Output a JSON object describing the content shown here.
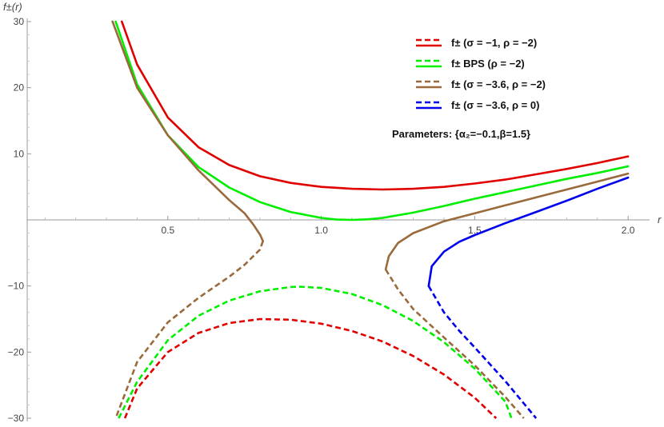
{
  "chart_data": {
    "type": "line",
    "xlabel": "r",
    "ylabel": "f±(r)",
    "xlim": [
      0.0,
      2.07
    ],
    "ylim": [
      -30,
      30
    ],
    "x_ticks": [
      0.5,
      1.0,
      1.5,
      2.0
    ],
    "x_tick_labels": [
      "0.5",
      "1.0",
      "1.5",
      "2.0"
    ],
    "y_ticks": [
      -30,
      -20,
      -10,
      10,
      20,
      30
    ],
    "y_tick_labels": [
      "−30",
      "−20",
      "−10",
      "10",
      "20",
      "30"
    ],
    "grid": false,
    "legend_position": "top-right",
    "annotation": "Parameters: {α₂=−0.1,β=1.5}",
    "series": [
      {
        "name": "f± (σ = −1, ρ = −2)",
        "color": "#e00000",
        "solid": {
          "x": [
            0.35,
            0.4,
            0.5,
            0.6,
            0.7,
            0.8,
            0.9,
            1.0,
            1.1,
            1.2,
            1.3,
            1.4,
            1.5,
            1.6,
            1.7,
            1.8,
            1.9,
            2.0
          ],
          "y": [
            30,
            23.5,
            15.5,
            11.0,
            8.3,
            6.6,
            5.6,
            5.0,
            4.7,
            4.6,
            4.7,
            5.0,
            5.5,
            6.1,
            6.9,
            7.7,
            8.6,
            9.6
          ]
        },
        "dashed": {
          "x": [
            0.36,
            0.4,
            0.5,
            0.6,
            0.7,
            0.8,
            0.9,
            1.0,
            1.1,
            1.2,
            1.3,
            1.4,
            1.5,
            1.57
          ],
          "y": [
            -30,
            -25.5,
            -20.0,
            -17.1,
            -15.6,
            -15.0,
            -15.1,
            -15.7,
            -16.8,
            -18.4,
            -20.6,
            -23.4,
            -26.9,
            -30
          ]
        }
      },
      {
        "name": "f± BPS (ρ = −2)",
        "color": "#00ee00",
        "solid": {
          "x": [
            0.33,
            0.4,
            0.5,
            0.6,
            0.7,
            0.8,
            0.9,
            1.0,
            1.05,
            1.1,
            1.15,
            1.2,
            1.3,
            1.4,
            1.5,
            1.6,
            1.7,
            1.8,
            1.9,
            2.0
          ],
          "y": [
            30,
            20.5,
            12.8,
            8.0,
            4.9,
            2.7,
            1.2,
            0.3,
            0.05,
            0.0,
            0.08,
            0.3,
            1.1,
            2.1,
            3.2,
            4.2,
            5.2,
            6.2,
            7.1,
            8.1
          ]
        },
        "dashed": {
          "x": [
            0.34,
            0.4,
            0.5,
            0.6,
            0.7,
            0.8,
            0.9,
            0.93,
            1.0,
            1.1,
            1.2,
            1.3,
            1.4,
            1.5,
            1.6,
            1.62
          ],
          "y": [
            -30,
            -24.5,
            -18.2,
            -14.5,
            -12.2,
            -10.8,
            -10.15,
            -10.1,
            -10.3,
            -11.2,
            -12.9,
            -15.3,
            -18.5,
            -22.5,
            -27.5,
            -30
          ]
        }
      },
      {
        "name": "f± (σ = −3.6, ρ = −2)",
        "color": "#9a6a3c",
        "solid": [
          {
            "x": [
              0.32,
              0.4,
              0.5,
              0.6,
              0.7,
              0.75,
              0.78,
              0.8,
              0.81
            ],
            "y": [
              30,
              20.0,
              12.8,
              7.5,
              3.0,
              1.0,
              -0.8,
              -2.2,
              -3.2
            ]
          },
          {
            "x": [
              1.21,
              1.22,
              1.25,
              1.3,
              1.4,
              1.5,
              1.6,
              1.7,
              1.8,
              1.9,
              2.0
            ],
            "y": [
              -7.5,
              -5.5,
              -3.5,
              -2.0,
              -0.2,
              1.0,
              2.2,
              3.4,
              4.6,
              5.8,
              7.0
            ]
          }
        ],
        "dashed": [
          {
            "x": [
              0.81,
              0.8,
              0.75,
              0.7,
              0.6,
              0.5,
              0.4,
              0.33
            ],
            "y": [
              -3.2,
              -4.5,
              -6.8,
              -8.6,
              -11.8,
              -15.5,
              -21.5,
              -30
            ]
          },
          {
            "x": [
              1.21,
              1.25,
              1.3,
              1.4,
              1.5,
              1.6,
              1.66
            ],
            "y": [
              -7.5,
              -10.5,
              -13.5,
              -17.8,
              -22.0,
              -26.8,
              -30
            ]
          }
        ]
      },
      {
        "name": "f± (σ = −3.6, ρ = 0)",
        "color": "#0000ee",
        "solid": {
          "x": [
            1.35,
            1.36,
            1.4,
            1.45,
            1.5,
            1.6,
            1.7,
            1.8,
            1.9,
            2.0
          ],
          "y": [
            -10.0,
            -7.0,
            -4.8,
            -3.3,
            -2.3,
            -0.5,
            1.2,
            2.9,
            4.7,
            6.4
          ]
        },
        "dashed": {
          "x": [
            1.35,
            1.4,
            1.45,
            1.5,
            1.6,
            1.7
          ],
          "y": [
            -10.0,
            -14.0,
            -16.8,
            -19.3,
            -24.4,
            -30
          ]
        }
      }
    ]
  }
}
